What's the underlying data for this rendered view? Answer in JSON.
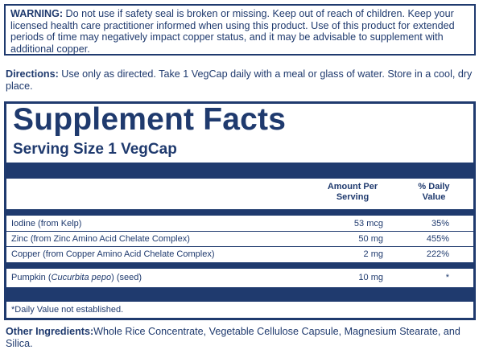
{
  "warning": {
    "label": "WARNING:",
    "text": " Do not use if safety seal is broken or missing. Keep out of reach of children. Keep your licensed health care practitioner informed when using this product. Use of this product for extended periods of time may negatively impact copper status, and it may be advisable to supplement with additional copper."
  },
  "directions": {
    "label": "Directions:",
    "text": " Use only as directed. Take 1 VegCap daily with a meal or glass of water. Store in a cool, dry place."
  },
  "facts": {
    "title": "Supplement Facts",
    "serving_size": "Serving Size 1 VegCap",
    "header_amount": [
      "Amount Per",
      "Serving"
    ],
    "header_dv": [
      "% Daily",
      "Value"
    ],
    "rows": [
      {
        "name": "Iodine (from Kelp)",
        "amount": "53 mcg",
        "dv": "35%"
      },
      {
        "name": "Zinc (from Zinc Amino Acid Chelate Complex)",
        "amount": "50 mg",
        "dv": "455%"
      },
      {
        "name": "Copper (from Copper Amino Acid Chelate Complex)",
        "amount": "2 mg",
        "dv": "222%"
      }
    ],
    "pumpkin": {
      "prefix": "Pumpkin (",
      "italic": "Cucurbita pepo",
      "suffix": ") (seed)",
      "amount": "10 mg",
      "dv": "*"
    },
    "footnote": "*Daily Value not established."
  },
  "other_ingredients": {
    "label": "Other Ingredients:",
    "text": "Whole Rice Concentrate, Vegetable Cellulose Capsule, Magnesium Stearate, and Silica."
  },
  "colors": {
    "primary": "#1f3a6e",
    "background": "#ffffff"
  }
}
